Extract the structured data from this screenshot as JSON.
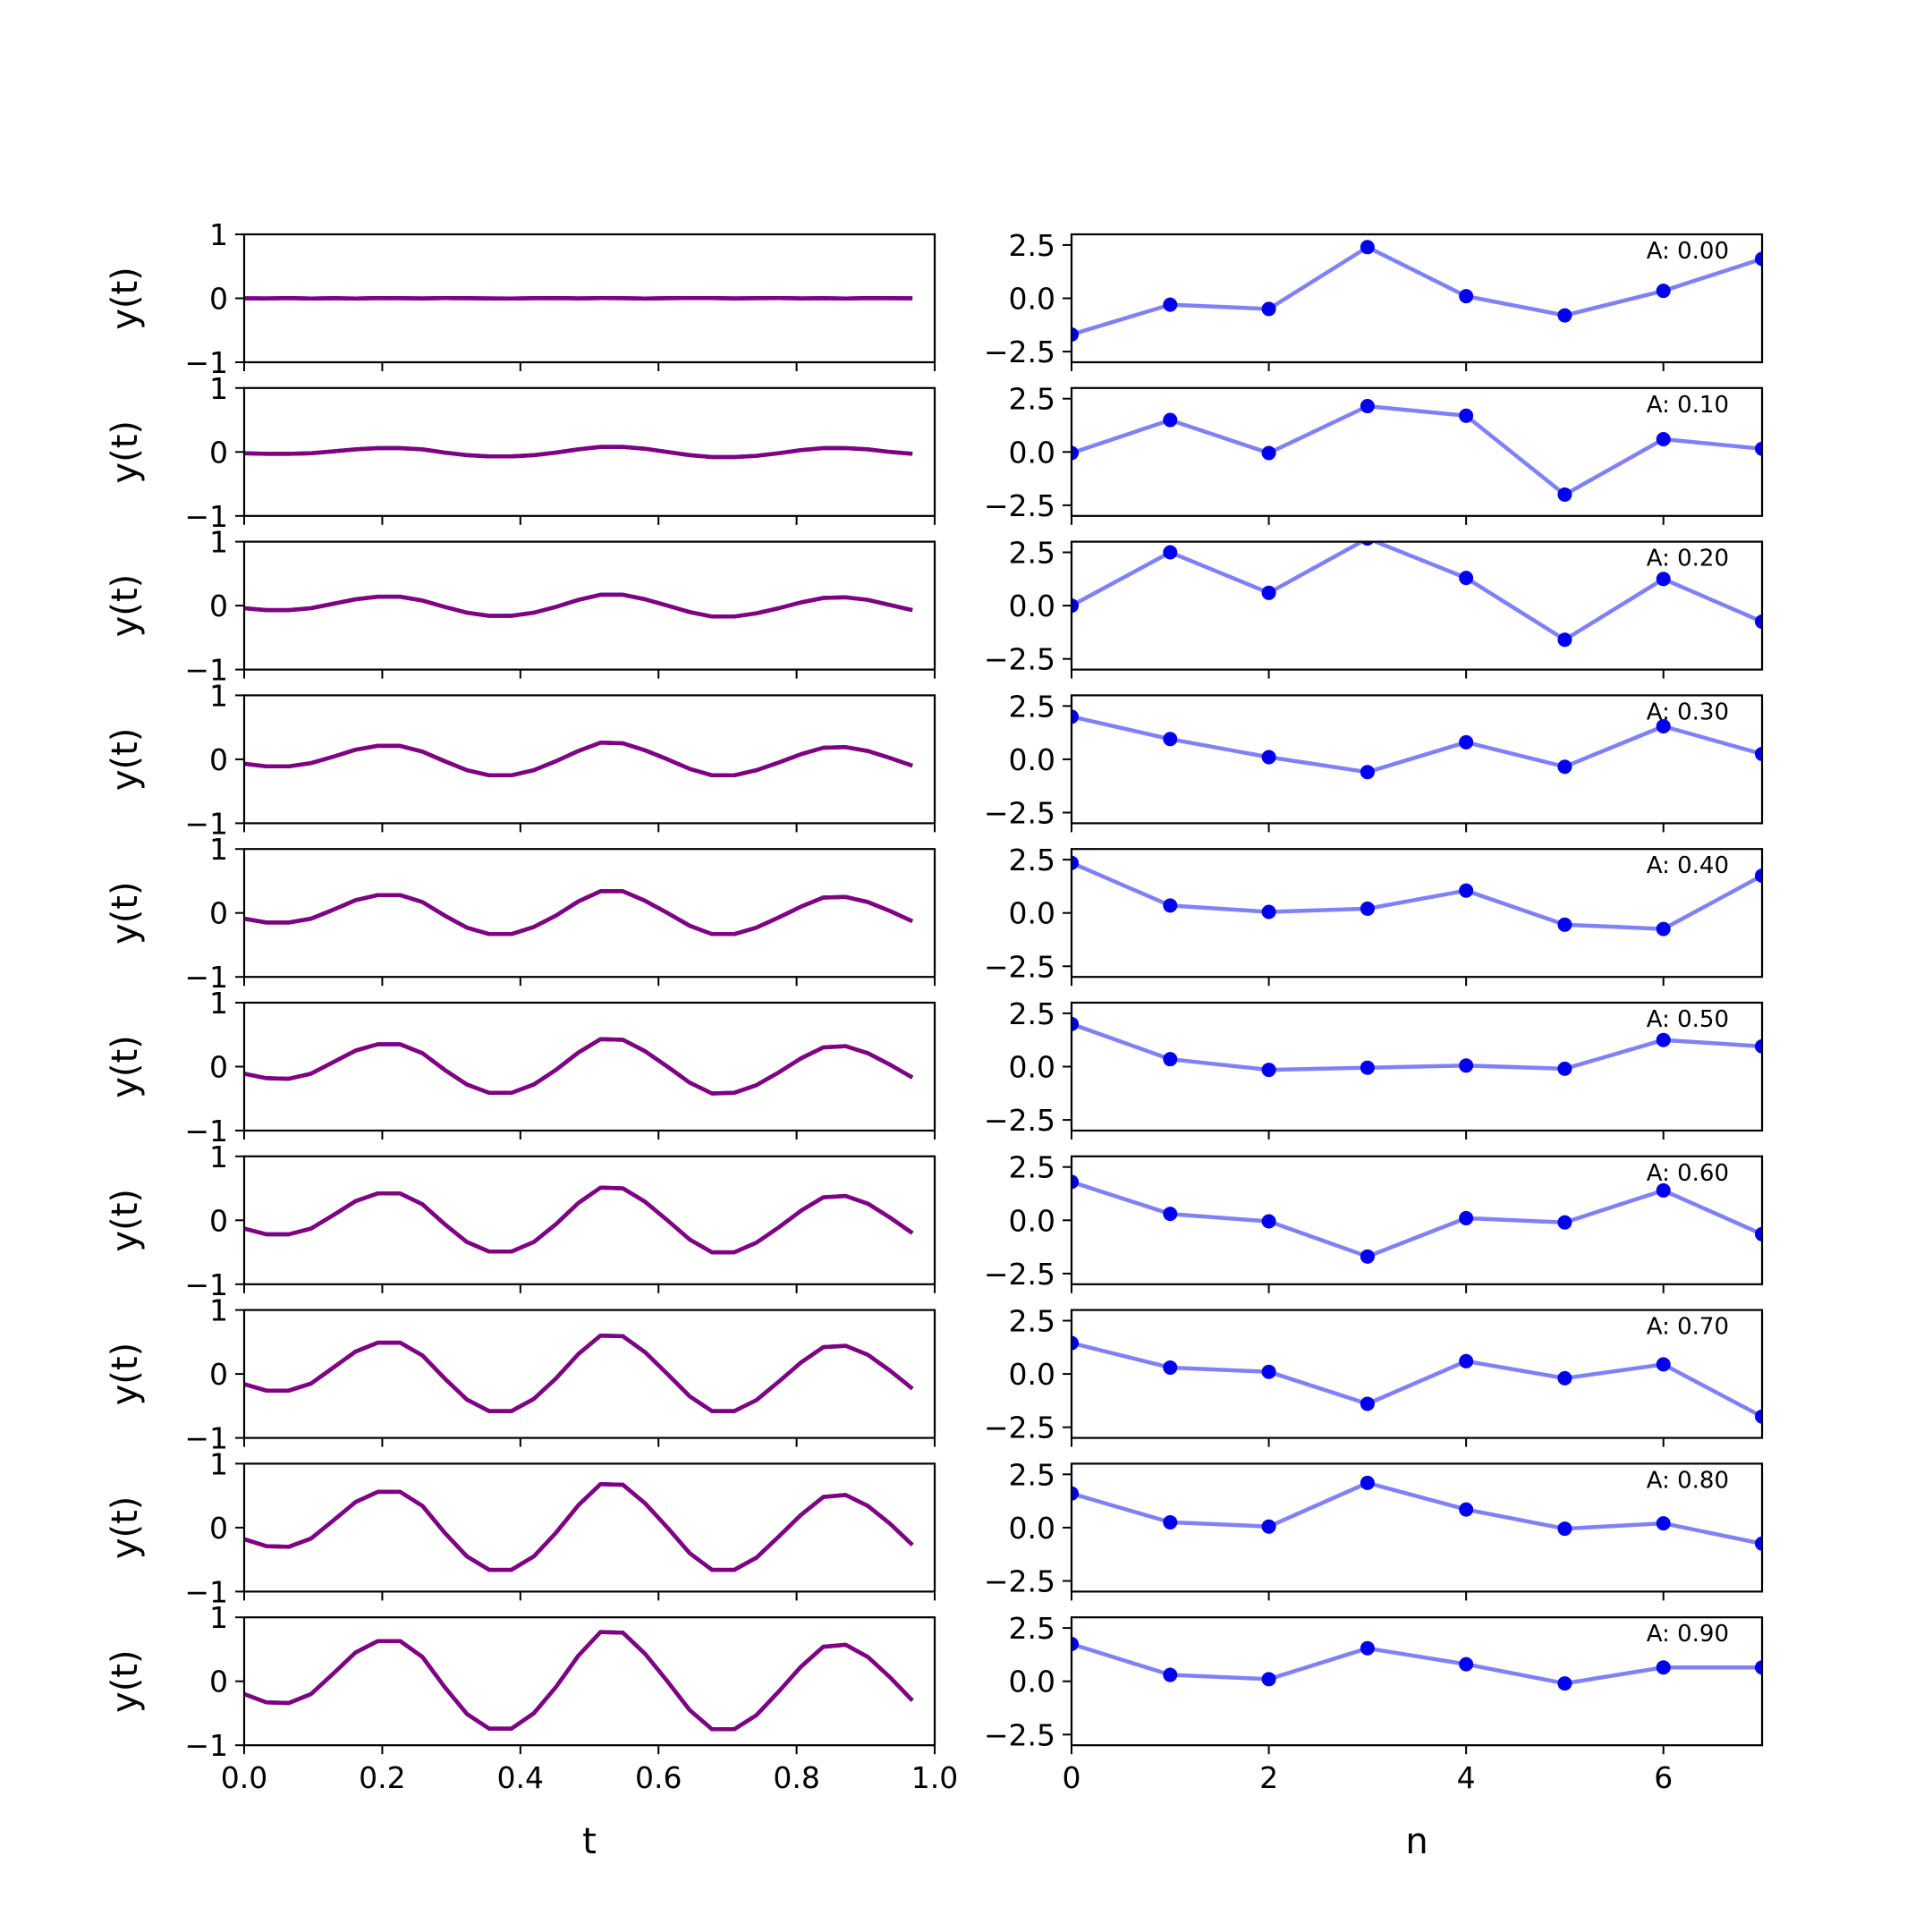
{
  "figure": {
    "left_xlabel": "t",
    "right_xlabel": "n",
    "ylabel": "y(t)"
  },
  "chart_data": [
    {
      "type": "line",
      "panel": "left-column",
      "xlabel": "t",
      "ylabel": "y(t)",
      "xlim": [
        0.0,
        1.0
      ],
      "ylim": [
        -1,
        1
      ],
      "xticks": [
        0.0,
        0.2,
        0.4,
        0.6,
        0.8,
        1.0
      ],
      "yticks": [
        -1,
        0,
        1
      ],
      "colors": {
        "line": "#800080",
        "line_under": "#0000ff"
      },
      "t": [
        0.0,
        0.0323,
        0.0645,
        0.0968,
        0.129,
        0.1613,
        0.1935,
        0.2258,
        0.2581,
        0.2903,
        0.3226,
        0.3548,
        0.3871,
        0.4194,
        0.4516,
        0.4839,
        0.5161,
        0.5484,
        0.5806,
        0.6129,
        0.6452,
        0.6774,
        0.7097,
        0.7419,
        0.7742,
        0.8065,
        0.8387,
        0.871,
        0.9032,
        0.9355,
        0.9677
      ],
      "series": [
        {
          "amplitude": 0.0,
          "y": [
            0.0,
            -0.002,
            0.003,
            -0.004,
            0.002,
            -0.003,
            0.004,
            0.001,
            -0.002,
            0.003,
            0.002,
            -0.001,
            -0.003,
            0.002,
            0.004,
            -0.002,
            0.003,
            0.001,
            -0.003,
            0.002,
            0.004,
            0.003,
            -0.002,
            0.001,
            0.003,
            -0.002,
            0.002,
            -0.004,
            0.003,
            0.002,
            0.0
          ]
        },
        {
          "amplitude": 0.1,
          "y": [
            -0.02,
            -0.03,
            -0.03,
            -0.02,
            0.01,
            0.04,
            0.06,
            0.06,
            0.04,
            -0.01,
            -0.05,
            -0.07,
            -0.07,
            -0.05,
            -0.01,
            0.04,
            0.08,
            0.08,
            0.05,
            0.0,
            -0.05,
            -0.08,
            -0.08,
            -0.06,
            -0.02,
            0.03,
            0.06,
            0.06,
            0.04,
            0.0,
            -0.03
          ]
        },
        {
          "amplitude": 0.2,
          "y": [
            -0.04,
            -0.07,
            -0.07,
            -0.04,
            0.03,
            0.1,
            0.14,
            0.14,
            0.08,
            -0.02,
            -0.11,
            -0.16,
            -0.16,
            -0.11,
            -0.02,
            0.09,
            0.17,
            0.17,
            0.1,
            0.0,
            -0.1,
            -0.17,
            -0.17,
            -0.12,
            -0.04,
            0.05,
            0.12,
            0.13,
            0.09,
            0.01,
            -0.07
          ]
        },
        {
          "amplitude": 0.3,
          "y": [
            -0.07,
            -0.11,
            -0.11,
            -0.06,
            0.04,
            0.15,
            0.21,
            0.21,
            0.12,
            -0.03,
            -0.17,
            -0.25,
            -0.25,
            -0.17,
            -0.03,
            0.13,
            0.26,
            0.25,
            0.14,
            0.0,
            -0.15,
            -0.25,
            -0.25,
            -0.17,
            -0.05,
            0.08,
            0.18,
            0.19,
            0.13,
            0.02,
            -0.1
          ]
        },
        {
          "amplitude": 0.4,
          "y": [
            -0.09,
            -0.15,
            -0.15,
            -0.09,
            0.05,
            0.2,
            0.28,
            0.28,
            0.17,
            -0.04,
            -0.23,
            -0.33,
            -0.33,
            -0.22,
            -0.04,
            0.18,
            0.34,
            0.34,
            0.19,
            0.0,
            -0.2,
            -0.33,
            -0.33,
            -0.23,
            -0.07,
            0.1,
            0.24,
            0.25,
            0.17,
            0.03,
            -0.13
          ]
        },
        {
          "amplitude": 0.5,
          "y": [
            -0.11,
            -0.18,
            -0.19,
            -0.11,
            0.07,
            0.25,
            0.35,
            0.35,
            0.21,
            -0.05,
            -0.28,
            -0.41,
            -0.41,
            -0.28,
            -0.05,
            0.22,
            0.43,
            0.42,
            0.24,
            0.0,
            -0.25,
            -0.42,
            -0.41,
            -0.29,
            -0.09,
            0.13,
            0.3,
            0.32,
            0.21,
            0.03,
            -0.17
          ]
        },
        {
          "amplitude": 0.6,
          "y": [
            -0.13,
            -0.22,
            -0.22,
            -0.13,
            0.08,
            0.3,
            0.42,
            0.42,
            0.25,
            -0.06,
            -0.34,
            -0.49,
            -0.49,
            -0.34,
            -0.06,
            0.27,
            0.51,
            0.5,
            0.29,
            0.0,
            -0.3,
            -0.5,
            -0.5,
            -0.35,
            -0.11,
            0.15,
            0.36,
            0.38,
            0.26,
            0.04,
            -0.2
          ]
        },
        {
          "amplitude": 0.7,
          "y": [
            -0.16,
            -0.26,
            -0.26,
            -0.15,
            0.1,
            0.35,
            0.49,
            0.49,
            0.29,
            -0.07,
            -0.4,
            -0.58,
            -0.58,
            -0.39,
            -0.07,
            0.31,
            0.6,
            0.59,
            0.34,
            0.0,
            -0.35,
            -0.58,
            -0.58,
            -0.41,
            -0.12,
            0.18,
            0.42,
            0.44,
            0.3,
            0.05,
            -0.23
          ]
        },
        {
          "amplitude": 0.8,
          "y": [
            -0.18,
            -0.29,
            -0.3,
            -0.17,
            0.11,
            0.4,
            0.56,
            0.56,
            0.34,
            -0.08,
            -0.45,
            -0.66,
            -0.66,
            -0.45,
            -0.08,
            0.35,
            0.68,
            0.67,
            0.38,
            0.0,
            -0.4,
            -0.66,
            -0.66,
            -0.47,
            -0.14,
            0.2,
            0.48,
            0.51,
            0.34,
            0.06,
            -0.27
          ]
        },
        {
          "amplitude": 0.9,
          "y": [
            -0.2,
            -0.33,
            -0.34,
            -0.2,
            0.12,
            0.45,
            0.63,
            0.63,
            0.38,
            -0.09,
            -0.51,
            -0.74,
            -0.74,
            -0.5,
            -0.09,
            0.4,
            0.77,
            0.76,
            0.43,
            0.0,
            -0.45,
            -0.75,
            -0.75,
            -0.53,
            -0.16,
            0.23,
            0.54,
            0.57,
            0.38,
            0.06,
            -0.3
          ]
        }
      ]
    },
    {
      "type": "line",
      "panel": "right-column",
      "markers": true,
      "xlabel": "n",
      "xlim": [
        0,
        7
      ],
      "ylim": [
        -3.0,
        3.0
      ],
      "xticks": [
        0,
        2,
        4,
        6
      ],
      "yticks": [
        -2.5,
        0.0,
        2.5
      ],
      "colors": {
        "line": "#8080f8",
        "marker": "#0000ee"
      },
      "n": [
        0,
        1,
        2,
        3,
        4,
        5,
        6,
        7
      ],
      "series": [
        {
          "label": "A: 0.00",
          "values": [
            -1.7,
            -0.3,
            -0.5,
            2.4,
            0.1,
            -0.8,
            0.35,
            1.85
          ]
        },
        {
          "label": "A: 0.10",
          "values": [
            -0.05,
            1.5,
            -0.05,
            2.15,
            1.7,
            -2.0,
            0.6,
            0.15
          ]
        },
        {
          "label": "A: 0.20",
          "values": [
            0.0,
            2.5,
            0.6,
            3.15,
            1.3,
            -1.6,
            1.25,
            -0.75
          ]
        },
        {
          "label": "A: 0.30",
          "values": [
            2.0,
            0.95,
            0.1,
            -0.6,
            0.8,
            -0.35,
            1.55,
            0.25
          ]
        },
        {
          "label": "A: 0.40",
          "values": [
            2.35,
            0.35,
            0.05,
            0.2,
            1.05,
            -0.55,
            -0.75,
            1.75
          ]
        },
        {
          "label": "A: 0.50",
          "values": [
            2.0,
            0.35,
            -0.15,
            -0.05,
            0.05,
            -0.1,
            1.25,
            0.95
          ]
        },
        {
          "label": "A: 0.60",
          "values": [
            1.8,
            0.3,
            -0.05,
            -1.7,
            0.1,
            -0.1,
            1.4,
            -0.65
          ]
        },
        {
          "label": "A: 0.70",
          "values": [
            1.45,
            0.3,
            0.1,
            -1.4,
            0.6,
            -0.2,
            0.45,
            -2.0
          ]
        },
        {
          "label": "A: 0.80",
          "values": [
            1.6,
            0.25,
            0.05,
            2.1,
            0.85,
            -0.05,
            0.2,
            -0.75
          ]
        },
        {
          "label": "A: 0.90",
          "values": [
            1.75,
            0.3,
            0.1,
            1.55,
            0.8,
            -0.1,
            0.65,
            0.65
          ]
        }
      ]
    }
  ]
}
